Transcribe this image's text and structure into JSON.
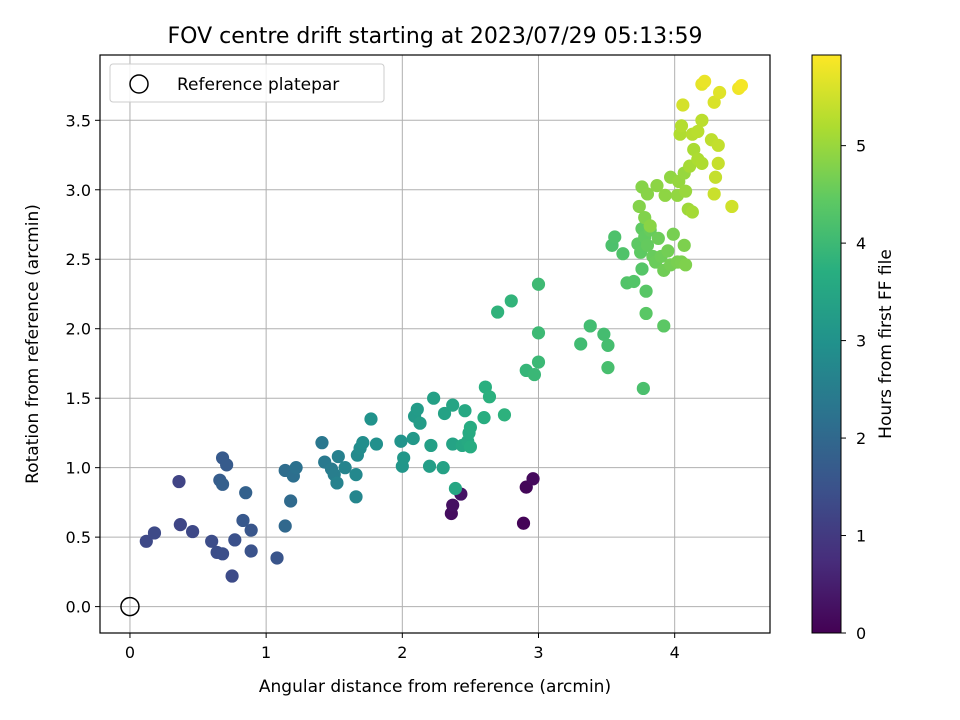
{
  "chart_data": {
    "type": "scatter",
    "title": "FOV centre drift starting at 2023/07/29 05:13:59",
    "xlabel": "Angular distance from reference (arcmin)",
    "ylabel": "Rotation from reference (arcmin)",
    "xlim": [
      -0.22,
      4.7
    ],
    "ylim": [
      -0.19,
      3.97
    ],
    "xticks": [
      0,
      1,
      2,
      3,
      4
    ],
    "yticks": [
      0.0,
      0.5,
      1.0,
      1.5,
      2.0,
      2.5,
      3.0,
      3.5
    ],
    "xtick_labels": [
      "0",
      "1",
      "2",
      "3",
      "4"
    ],
    "ytick_labels": [
      "0.0",
      "0.5",
      "1.0",
      "1.5",
      "2.0",
      "2.5",
      "3.0",
      "3.5"
    ],
    "grid": true,
    "legend": {
      "position": "top-left",
      "entries": [
        "Reference platepar"
      ]
    },
    "reference_point": {
      "x": 0.0,
      "y": 0.0
    },
    "colorbar": {
      "label": "Hours from first FF file",
      "range": [
        0,
        5.93
      ],
      "ticks": [
        0,
        1,
        2,
        3,
        4,
        5
      ],
      "tick_labels": [
        "0",
        "1",
        "2",
        "3",
        "4",
        "5"
      ],
      "colormap": "viridis"
    },
    "points": [
      [
        2.89,
        0.6,
        0.05
      ],
      [
        2.91,
        0.86,
        0.1
      ],
      [
        2.96,
        0.92,
        0.15
      ],
      [
        2.36,
        0.67,
        0.2
      ],
      [
        2.37,
        0.73,
        0.25
      ],
      [
        2.43,
        0.81,
        0.3
      ],
      [
        0.36,
        0.9,
        1.2
      ],
      [
        0.37,
        0.59,
        1.25
      ],
      [
        0.46,
        0.54,
        1.28
      ],
      [
        0.12,
        0.47,
        1.3
      ],
      [
        0.18,
        0.53,
        1.32
      ],
      [
        0.75,
        0.22,
        1.35
      ],
      [
        0.6,
        0.47,
        1.38
      ],
      [
        0.64,
        0.39,
        1.4
      ],
      [
        0.68,
        0.38,
        1.43
      ],
      [
        0.77,
        0.48,
        1.46
      ],
      [
        0.89,
        0.4,
        1.5
      ],
      [
        1.08,
        0.35,
        1.55
      ],
      [
        0.89,
        0.55,
        1.58
      ],
      [
        0.83,
        0.62,
        1.62
      ],
      [
        0.68,
        1.07,
        1.66
      ],
      [
        0.71,
        1.02,
        1.7
      ],
      [
        0.66,
        0.91,
        1.74
      ],
      [
        0.68,
        0.88,
        1.78
      ],
      [
        0.85,
        0.82,
        1.82
      ],
      [
        1.14,
        0.58,
        2.0
      ],
      [
        1.18,
        0.76,
        2.05
      ],
      [
        1.14,
        0.98,
        2.1
      ],
      [
        1.2,
        0.94,
        2.15
      ],
      [
        1.22,
        1.0,
        2.2
      ],
      [
        1.41,
        1.18,
        2.35
      ],
      [
        1.43,
        1.04,
        2.4
      ],
      [
        1.48,
        0.99,
        2.45
      ],
      [
        1.5,
        0.95,
        2.5
      ],
      [
        1.53,
        1.08,
        2.55
      ],
      [
        1.52,
        0.89,
        2.6
      ],
      [
        1.58,
        1.0,
        2.65
      ],
      [
        1.66,
        0.79,
        2.7
      ],
      [
        1.66,
        0.95,
        2.75
      ],
      [
        1.67,
        1.09,
        2.8
      ],
      [
        1.69,
        1.14,
        2.85
      ],
      [
        1.71,
        1.18,
        2.9
      ],
      [
        1.81,
        1.17,
        2.95
      ],
      [
        1.77,
        1.35,
        3.0
      ],
      [
        1.99,
        1.19,
        3.05
      ],
      [
        2.0,
        1.01,
        3.1
      ],
      [
        2.01,
        1.07,
        3.12
      ],
      [
        2.08,
        1.21,
        3.15
      ],
      [
        2.09,
        1.37,
        3.2
      ],
      [
        2.11,
        1.42,
        3.22
      ],
      [
        2.13,
        1.32,
        3.25
      ],
      [
        2.2,
        1.01,
        3.3
      ],
      [
        2.21,
        1.16,
        3.32
      ],
      [
        2.23,
        1.5,
        3.35
      ],
      [
        2.3,
        1.0,
        3.38
      ],
      [
        2.31,
        1.39,
        3.4
      ],
      [
        2.37,
        1.17,
        3.42
      ],
      [
        2.37,
        1.45,
        3.45
      ],
      [
        2.39,
        0.85,
        3.5
      ],
      [
        2.44,
        1.16,
        3.52
      ],
      [
        2.46,
        1.41,
        3.55
      ],
      [
        2.48,
        1.19,
        3.58
      ],
      [
        2.49,
        1.25,
        3.6
      ],
      [
        2.5,
        1.29,
        3.62
      ],
      [
        2.5,
        1.15,
        3.65
      ],
      [
        2.6,
        1.36,
        3.68
      ],
      [
        2.61,
        1.58,
        3.72
      ],
      [
        2.64,
        1.51,
        3.75
      ],
      [
        2.75,
        1.38,
        3.78
      ],
      [
        2.7,
        2.12,
        3.82
      ],
      [
        2.8,
        2.2,
        3.85
      ],
      [
        2.91,
        1.7,
        3.9
      ],
      [
        2.97,
        1.67,
        3.95
      ],
      [
        3.0,
        1.76,
        3.98
      ],
      [
        3.0,
        1.97,
        4.0
      ],
      [
        3.0,
        2.32,
        4.02
      ],
      [
        3.31,
        1.89,
        4.05
      ],
      [
        3.38,
        2.02,
        4.08
      ],
      [
        3.48,
        1.96,
        4.1
      ],
      [
        3.51,
        1.88,
        4.12
      ],
      [
        3.51,
        1.72,
        4.15
      ],
      [
        3.77,
        1.57,
        4.18
      ],
      [
        3.54,
        2.6,
        4.2
      ],
      [
        3.56,
        2.66,
        4.22
      ],
      [
        3.62,
        2.54,
        4.25
      ],
      [
        3.65,
        2.33,
        4.28
      ],
      [
        3.7,
        2.34,
        4.3
      ],
      [
        3.76,
        2.43,
        4.33
      ],
      [
        3.79,
        2.27,
        4.36
      ],
      [
        3.79,
        2.11,
        4.38
      ],
      [
        3.92,
        2.02,
        4.4
      ],
      [
        3.73,
        2.61,
        4.42
      ],
      [
        3.75,
        2.55,
        4.44
      ],
      [
        3.76,
        2.72,
        4.46
      ],
      [
        3.78,
        2.66,
        4.48
      ],
      [
        3.8,
        2.6,
        4.5
      ],
      [
        3.82,
        2.71,
        4.52
      ],
      [
        3.84,
        2.52,
        4.54
      ],
      [
        3.86,
        2.48,
        4.56
      ],
      [
        3.88,
        2.65,
        4.58
      ],
      [
        3.9,
        2.52,
        4.6
      ],
      [
        3.92,
        2.42,
        4.62
      ],
      [
        3.95,
        2.56,
        4.64
      ],
      [
        3.97,
        2.46,
        4.66
      ],
      [
        3.99,
        2.68,
        4.68
      ],
      [
        4.02,
        2.48,
        4.7
      ],
      [
        4.05,
        2.48,
        4.72
      ],
      [
        4.07,
        2.6,
        4.74
      ],
      [
        4.08,
        2.46,
        4.76
      ],
      [
        3.78,
        2.8,
        4.78
      ],
      [
        3.74,
        2.88,
        4.8
      ],
      [
        3.76,
        3.02,
        4.82
      ],
      [
        3.8,
        2.97,
        4.84
      ],
      [
        3.82,
        2.74,
        4.86
      ],
      [
        3.87,
        3.03,
        4.88
      ],
      [
        3.93,
        2.96,
        4.9
      ],
      [
        3.97,
        3.09,
        4.92
      ],
      [
        4.02,
        2.96,
        4.94
      ],
      [
        4.03,
        3.06,
        4.96
      ],
      [
        4.07,
        3.12,
        4.98
      ],
      [
        4.08,
        2.99,
        5.0
      ],
      [
        4.1,
        2.86,
        5.05
      ],
      [
        4.13,
        2.84,
        5.1
      ],
      [
        4.11,
        3.17,
        5.12
      ],
      [
        4.14,
        3.29,
        5.15
      ],
      [
        4.17,
        3.22,
        5.18
      ],
      [
        4.2,
        3.19,
        5.2
      ],
      [
        4.04,
        3.4,
        5.22
      ],
      [
        4.05,
        3.46,
        5.25
      ],
      [
        4.13,
        3.4,
        5.28
      ],
      [
        4.17,
        3.42,
        5.3
      ],
      [
        4.2,
        3.5,
        5.32
      ],
      [
        4.27,
        3.36,
        5.35
      ],
      [
        4.32,
        3.32,
        5.38
      ],
      [
        4.3,
        3.09,
        5.4
      ],
      [
        4.32,
        3.19,
        5.42
      ],
      [
        4.29,
        2.97,
        5.45
      ],
      [
        4.42,
        2.88,
        5.5
      ],
      [
        4.06,
        3.61,
        5.55
      ],
      [
        4.29,
        3.63,
        5.6
      ],
      [
        4.33,
        3.7,
        5.65
      ],
      [
        4.2,
        3.76,
        5.7
      ],
      [
        4.22,
        3.78,
        5.75
      ],
      [
        4.47,
        3.73,
        5.8
      ],
      [
        4.49,
        3.75,
        5.85
      ]
    ]
  }
}
